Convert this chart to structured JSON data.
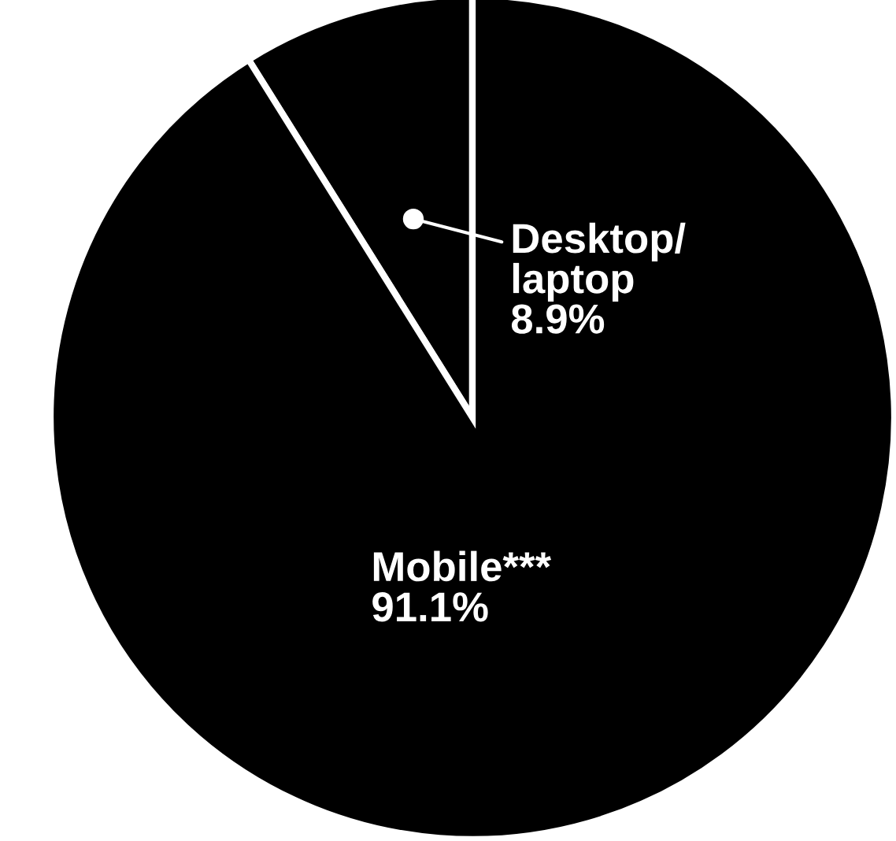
{
  "chart_data": {
    "type": "pie",
    "categories": [
      "Desktop/\nlaptop",
      "Mobile***"
    ],
    "values": [
      8.9,
      91.1
    ],
    "colors": [
      "#000000",
      "#000000"
    ],
    "value_labels": [
      "8.9%",
      "91.1%"
    ]
  }
}
